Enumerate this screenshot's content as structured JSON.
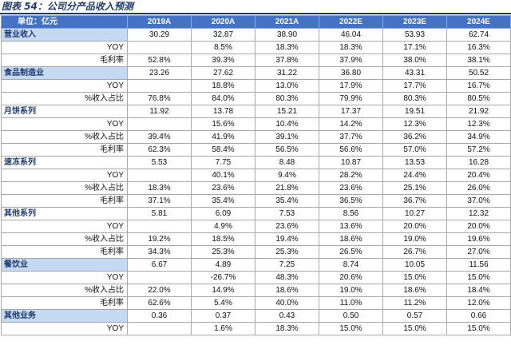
{
  "title": "图表 54：公司分产品收入预测",
  "header": {
    "unit": "单位：亿元",
    "years": [
      "2019A",
      "2020A",
      "2021A",
      "2022E",
      "2023E",
      "2024E"
    ]
  },
  "rows": [
    {
      "label": "营业收入",
      "kind": "seg",
      "highlight": true,
      "values": [
        "30.29",
        "32.87",
        "38.90",
        "46.04",
        "53.93",
        "62.74"
      ]
    },
    {
      "label": "YOY",
      "kind": "sub",
      "values": [
        "",
        "8.5%",
        "18.3%",
        "18.3%",
        "17.1%",
        "16.3%"
      ]
    },
    {
      "label": "毛利率",
      "kind": "sub",
      "values": [
        "52.8%",
        "39.3%",
        "37.8%",
        "37.9%",
        "38.0%",
        "38.1%"
      ]
    },
    {
      "label": "食品制造业",
      "kind": "seg",
      "highlight": true,
      "values": [
        "23.26",
        "27.62",
        "31.22",
        "36.80",
        "43.31",
        "50.52"
      ]
    },
    {
      "label": "YOY",
      "kind": "sub",
      "values": [
        "",
        "18.8%",
        "13.0%",
        "17.9%",
        "17.7%",
        "16.7%"
      ]
    },
    {
      "label": "%收入占比",
      "kind": "sub",
      "values": [
        "76.8%",
        "84.0%",
        "80.3%",
        "79.9%",
        "80.3%",
        "80.5%"
      ]
    },
    {
      "label": "月饼系列",
      "kind": "seg",
      "highlight": false,
      "values": [
        "11.92",
        "13.78",
        "15.21",
        "17.37",
        "19.51",
        "21.92"
      ]
    },
    {
      "label": "YOY",
      "kind": "sub",
      "values": [
        "",
        "15.6%",
        "10.4%",
        "14.2%",
        "12.3%",
        "12.3%"
      ]
    },
    {
      "label": "%收入占比",
      "kind": "sub",
      "values": [
        "39.4%",
        "41.9%",
        "39.1%",
        "37.7%",
        "36.2%",
        "34.9%"
      ]
    },
    {
      "label": "毛利率",
      "kind": "sub",
      "values": [
        "62.3%",
        "58.4%",
        "56.5%",
        "56.6%",
        "57.0%",
        "57.2%"
      ]
    },
    {
      "label": "速冻系列",
      "kind": "seg",
      "highlight": false,
      "values": [
        "5.53",
        "7.75",
        "8.48",
        "10.87",
        "13.53",
        "16.28"
      ]
    },
    {
      "label": "YOY",
      "kind": "sub",
      "values": [
        "",
        "40.1%",
        "9.4%",
        "28.2%",
        "24.4%",
        "20.4%"
      ]
    },
    {
      "label": "%收入占比",
      "kind": "sub",
      "values": [
        "18.3%",
        "23.6%",
        "21.8%",
        "23.6%",
        "25.1%",
        "26.0%"
      ]
    },
    {
      "label": "毛利率",
      "kind": "sub",
      "values": [
        "37.1%",
        "35.4%",
        "35.4%",
        "36.5%",
        "36.7%",
        "37.0%"
      ]
    },
    {
      "label": "其他系列",
      "kind": "seg",
      "highlight": false,
      "values": [
        "5.81",
        "6.09",
        "7.53",
        "8.56",
        "10.27",
        "12.32"
      ]
    },
    {
      "label": "YOY",
      "kind": "sub",
      "values": [
        "",
        "4.9%",
        "23.6%",
        "13.6%",
        "20.0%",
        "20.0%"
      ]
    },
    {
      "label": "%收入占比",
      "kind": "sub",
      "values": [
        "19.2%",
        "18.5%",
        "19.4%",
        "18.6%",
        "19.0%",
        "19.6%"
      ]
    },
    {
      "label": "毛利率",
      "kind": "sub",
      "values": [
        "34.3%",
        "25.3%",
        "25.3%",
        "26.5%",
        "26.7%",
        "27.0%"
      ]
    },
    {
      "label": "餐饮业",
      "kind": "seg",
      "highlight": true,
      "values": [
        "6.67",
        "4.89",
        "7.25",
        "8.74",
        "10.05",
        "11.56"
      ]
    },
    {
      "label": "YOY",
      "kind": "sub",
      "values": [
        "",
        "-26.7%",
        "48.3%",
        "20.6%",
        "15.0%",
        "15.0%"
      ]
    },
    {
      "label": "%收入占比",
      "kind": "sub",
      "values": [
        "22.0%",
        "14.9%",
        "18.6%",
        "19.0%",
        "18.6%",
        "18.4%"
      ]
    },
    {
      "label": "毛利率",
      "kind": "sub",
      "values": [
        "62.6%",
        "5.4%",
        "40.0%",
        "11.0%",
        "11.2%",
        "12.0%"
      ]
    },
    {
      "label": "其他业务",
      "kind": "seg",
      "highlight": true,
      "values": [
        "0.36",
        "0.37",
        "0.43",
        "0.50",
        "0.57",
        "0.66"
      ]
    },
    {
      "label": "YOY",
      "kind": "sub",
      "values": [
        "",
        "1.6%",
        "18.3%",
        "15.0%",
        "15.0%",
        "15.0%"
      ]
    }
  ]
}
